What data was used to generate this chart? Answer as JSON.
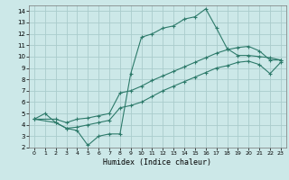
{
  "xlabel": "Humidex (Indice chaleur)",
  "bg_color": "#cce8e8",
  "grid_color": "#aacccc",
  "line_color": "#2d7a6a",
  "xlim": [
    -0.5,
    23.5
  ],
  "ylim": [
    2,
    14.5
  ],
  "xticks": [
    0,
    1,
    2,
    3,
    4,
    5,
    6,
    7,
    8,
    9,
    10,
    11,
    12,
    13,
    14,
    15,
    16,
    17,
    18,
    19,
    20,
    21,
    22,
    23
  ],
  "yticks": [
    2,
    3,
    4,
    5,
    6,
    7,
    8,
    9,
    10,
    11,
    12,
    13,
    14
  ],
  "line1_x": [
    0,
    1,
    2,
    3,
    4,
    5,
    6,
    7,
    8,
    9,
    10,
    11,
    12,
    13,
    14,
    15,
    16,
    17,
    18,
    19,
    20,
    21,
    22,
    23
  ],
  "line1_y": [
    4.5,
    5.0,
    4.2,
    3.7,
    3.5,
    2.2,
    3.0,
    3.2,
    3.2,
    8.5,
    11.7,
    12.0,
    12.5,
    12.7,
    13.3,
    13.5,
    14.2,
    12.5,
    10.7,
    10.1,
    10.1,
    10.0,
    9.9,
    9.7
  ],
  "line2_x": [
    0,
    2,
    3,
    4,
    5,
    6,
    7,
    8,
    9,
    10,
    11,
    12,
    13,
    14,
    15,
    16,
    17,
    18,
    19,
    20,
    21,
    22,
    23
  ],
  "line2_y": [
    4.5,
    4.5,
    4.2,
    4.5,
    4.6,
    4.8,
    5.0,
    6.8,
    7.0,
    7.4,
    7.9,
    8.3,
    8.7,
    9.1,
    9.5,
    9.9,
    10.3,
    10.6,
    10.8,
    10.9,
    10.5,
    9.7,
    9.7
  ],
  "line3_x": [
    0,
    2,
    3,
    4,
    5,
    6,
    7,
    8,
    9,
    10,
    11,
    12,
    13,
    14,
    15,
    16,
    17,
    18,
    19,
    20,
    21,
    22,
    23
  ],
  "line3_y": [
    4.5,
    4.2,
    3.7,
    3.8,
    4.0,
    4.2,
    4.4,
    5.5,
    5.7,
    6.0,
    6.5,
    7.0,
    7.4,
    7.8,
    8.2,
    8.6,
    9.0,
    9.2,
    9.5,
    9.6,
    9.3,
    8.5,
    9.5
  ]
}
